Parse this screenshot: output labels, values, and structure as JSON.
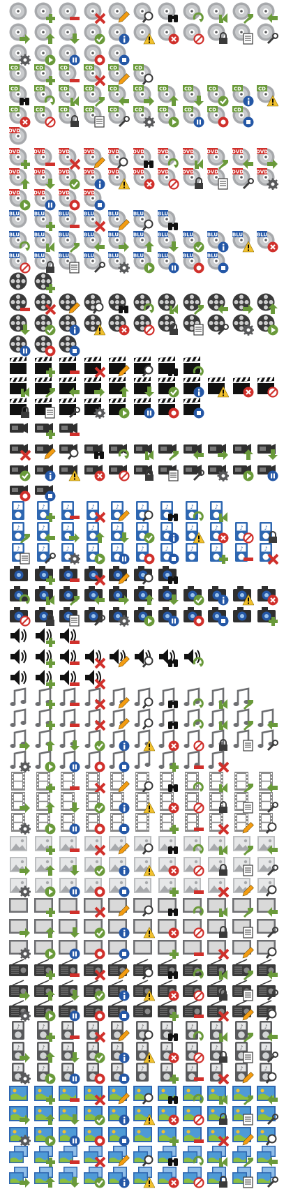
{
  "sheet": {
    "columns": 11,
    "colors": {
      "disc_gray": "#a7a9ac",
      "disc_dark": "#58595b",
      "green": "#6a9a3a",
      "red": "#d0302b",
      "blue": "#2457a6",
      "yellow": "#f2c12e",
      "orange": "#f39c12",
      "black": "#111111",
      "photo_sky": "#4e9ad6",
      "photo_grass": "#8cbf3f",
      "screen_gray": "#d9d9d9"
    },
    "badge_cycle": [
      "none",
      "add",
      "remove",
      "delete",
      "edit",
      "search",
      "find",
      "refresh",
      "import",
      "export",
      "back",
      "forward",
      "up",
      "down",
      "ok",
      "info",
      "warning",
      "error",
      "blocked",
      "lock",
      "properties",
      "tools",
      "settings",
      "play",
      "pause",
      "record",
      "stop"
    ],
    "badge_label": {
      "cd": "CD",
      "dvd": "DVD",
      "blu": "BLU"
    },
    "rows": [
      {
        "base": "disc",
        "count": 11,
        "start": 0
      },
      {
        "base": "disc",
        "count": 11,
        "start": 11
      },
      {
        "base": "disc",
        "count": 5,
        "start": 22
      },
      {
        "base": "cd",
        "count": 6,
        "start": 0
      },
      {
        "base": "cd",
        "count": 11,
        "start": 6
      },
      {
        "base": "cd",
        "count": 10,
        "start": 17
      },
      {
        "base": "dvd",
        "count": 1,
        "start": 0
      },
      {
        "base": "dvd",
        "count": 11,
        "start": 1
      },
      {
        "base": "dvd",
        "count": 11,
        "start": 12
      },
      {
        "base": "dvd",
        "count": 4,
        "start": 23
      },
      {
        "base": "blu",
        "count": 7,
        "start": 0
      },
      {
        "base": "blu",
        "count": 11,
        "start": 7
      },
      {
        "base": "blu",
        "count": 9,
        "start": 18
      },
      {
        "base": "reel",
        "count": 2,
        "start": 0
      },
      {
        "base": "reel",
        "count": 11,
        "start": 2
      },
      {
        "base": "reel",
        "count": 11,
        "start": 13
      },
      {
        "base": "reel",
        "count": 3,
        "start": 24
      },
      {
        "base": "clapper",
        "count": 8,
        "start": 0
      },
      {
        "base": "clapper",
        "count": 11,
        "start": 8
      },
      {
        "base": "clapper",
        "count": 8,
        "start": 19
      },
      {
        "base": "camcorder",
        "count": 3,
        "start": 0
      },
      {
        "base": "camcorder",
        "count": 11,
        "start": 3
      },
      {
        "base": "camcorder",
        "count": 11,
        "start": 14
      },
      {
        "base": "camcorder",
        "count": 2,
        "start": 25
      },
      {
        "base": "player",
        "count": 9,
        "start": 0
      },
      {
        "base": "player",
        "count": 11,
        "start": 9
      },
      {
        "base": "player",
        "count": 11,
        "start": 20
      },
      {
        "base": "camera",
        "count": 7,
        "start": 0
      },
      {
        "base": "camera",
        "count": 11,
        "start": 7
      },
      {
        "base": "camera",
        "count": 11,
        "start": 18
      },
      {
        "base": "speaker",
        "count": 3,
        "start": 0
      },
      {
        "base": "speaker",
        "count": 8,
        "start": 0
      },
      {
        "base": "speaker",
        "count": 4,
        "start": 0
      },
      {
        "base": "note",
        "count": 10,
        "start": 0
      },
      {
        "base": "note",
        "count": 11,
        "start": 0
      },
      {
        "base": "note",
        "count": 11,
        "start": 11
      },
      {
        "base": "note",
        "count": 9,
        "start": 22
      },
      {
        "base": "film",
        "count": 11,
        "start": 0
      },
      {
        "base": "film",
        "count": 11,
        "start": 11
      },
      {
        "base": "film",
        "count": 11,
        "start": 22
      },
      {
        "base": "picture",
        "count": 11,
        "start": 0
      },
      {
        "base": "picture",
        "count": 11,
        "start": 11
      },
      {
        "base": "picture",
        "count": 11,
        "start": 22
      },
      {
        "base": "screen",
        "count": 11,
        "start": 0
      },
      {
        "base": "screen",
        "count": 11,
        "start": 11
      },
      {
        "base": "screen",
        "count": 11,
        "start": 22
      },
      {
        "base": "radio",
        "count": 11,
        "start": 0
      },
      {
        "base": "radio",
        "count": 11,
        "start": 11
      },
      {
        "base": "radio",
        "count": 11,
        "start": 22
      },
      {
        "base": "ipod",
        "count": 11,
        "start": 0
      },
      {
        "base": "ipod",
        "count": 11,
        "start": 11
      },
      {
        "base": "ipod",
        "count": 11,
        "start": 22
      },
      {
        "base": "photo",
        "count": 11,
        "start": 0
      },
      {
        "base": "photo",
        "count": 11,
        "start": 11
      },
      {
        "base": "photo",
        "count": 11,
        "start": 22
      },
      {
        "base": "photos",
        "count": 11,
        "start": 0
      },
      {
        "base": "photos",
        "count": 11,
        "start": 11
      }
    ]
  }
}
